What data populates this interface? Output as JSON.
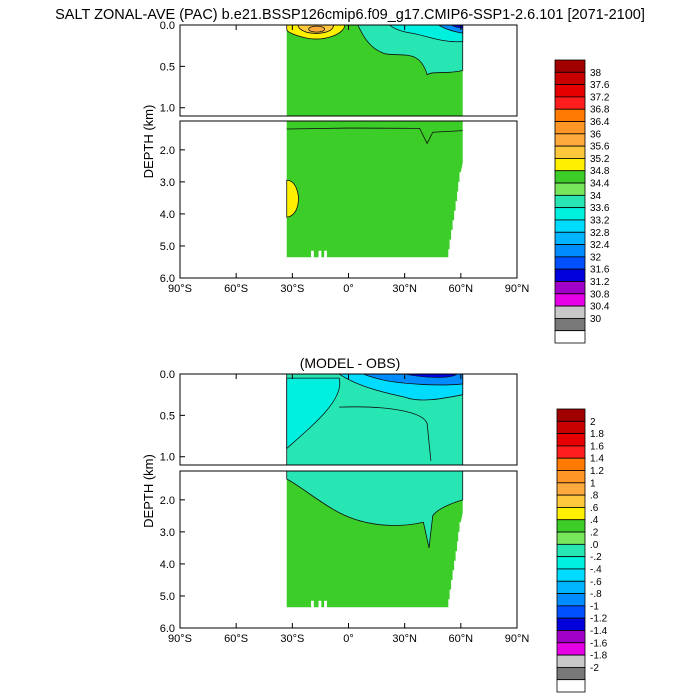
{
  "title": "SALT ZONAL-AVE (PAC) b.e21.BSSP126cmip6.f09_g17.CMIP6-SSP1-2.6.101 [2071-2100]",
  "bottom_title": "(MODEL - OBS)",
  "colors": {
    "frame": "#000000",
    "contour": "#111111"
  },
  "chart_data": [
    {
      "type": "heatmap",
      "name": "Salinity zonal average",
      "xlabel": "",
      "ylabel": "DEPTH (km)",
      "x_ticks": [
        "90°S",
        "60°S",
        "30°S",
        "0°",
        "30°N",
        "60°N",
        "90°N"
      ],
      "x_tick_values": [
        -90,
        -60,
        -30,
        0,
        30,
        60,
        90
      ],
      "y_ticks_upper": [
        "0.0",
        "0.5",
        "1.0"
      ],
      "y_ticks_upper_values": [
        0.0,
        0.5,
        1.0
      ],
      "y_ticks_lower": [
        "2.0",
        "3.0",
        "4.0",
        "5.0",
        "6.0"
      ],
      "y_ticks_lower_values": [
        2.0,
        3.0,
        4.0,
        5.0,
        6.0
      ],
      "xlim": [
        -90,
        90
      ],
      "ylim_upper": [
        0.0,
        1.1
      ],
      "ylim_lower": [
        1.1,
        6.0
      ],
      "colorbar_levels": [
        "38",
        "37.6",
        "37.2",
        "36.8",
        "36.4",
        "36",
        "35.6",
        "35.2",
        "34.8",
        "34.4",
        "34",
        "33.6",
        "33.2",
        "32.8",
        "32.4",
        "32",
        "31.6",
        "31.2",
        "30.8",
        "30.4",
        "30"
      ],
      "colorbar_colors": [
        "#a00000",
        "#c80000",
        "#e60000",
        "#ff1e1e",
        "#ff7a00",
        "#ff9626",
        "#ffaa3c",
        "#ffc83c",
        "#fff000",
        "#3ccd28",
        "#78e65a",
        "#28e6b4",
        "#00f0e0",
        "#00dcff",
        "#00b4ff",
        "#008cff",
        "#0050ff",
        "#0000dc",
        "#a000c8",
        "#e600e6",
        "#c8c8c8",
        "#787878",
        "#ffffff"
      ],
      "regions": [
        {
          "desc": "basin background",
          "x": [
            -33,
            61
          ],
          "depth": [
            0,
            5.35
          ],
          "value": 34.5
        },
        {
          "desc": "upper-ocean fresher water north of equator",
          "x": [
            0,
            61
          ],
          "depth": [
            0,
            0.45
          ],
          "value": 33.8
        },
        {
          "desc": "salty subtropical maximum",
          "x": [
            -33,
            -5
          ],
          "depth": [
            0,
            0.15
          ],
          "value": 35.6
        },
        {
          "desc": "deep salty bulge near south boundary",
          "x": [
            -33,
            -28
          ],
          "depth": [
            2.9,
            4.1
          ],
          "value": 34.8
        },
        {
          "desc": "fresh high-latitude surface",
          "x": [
            50,
            61
          ],
          "depth": [
            0,
            0.05
          ],
          "value": 31.8
        }
      ]
    },
    {
      "type": "heatmap",
      "name": "Model minus observations",
      "xlabel": "",
      "ylabel": "DEPTH (km)",
      "x_ticks": [
        "90°S",
        "60°S",
        "30°S",
        "0°",
        "30°N",
        "60°N",
        "90°N"
      ],
      "x_tick_values": [
        -90,
        -60,
        -30,
        0,
        30,
        60,
        90
      ],
      "y_ticks_upper": [
        "0.0",
        "0.5",
        "1.0"
      ],
      "y_ticks_upper_values": [
        0.0,
        0.5,
        1.0
      ],
      "y_ticks_lower": [
        "2.0",
        "3.0",
        "4.0",
        "5.0",
        "6.0"
      ],
      "y_ticks_lower_values": [
        2.0,
        3.0,
        4.0,
        5.0,
        6.0
      ],
      "xlim": [
        -90,
        90
      ],
      "ylim_upper": [
        0.0,
        1.1
      ],
      "ylim_lower": [
        1.1,
        6.0
      ],
      "colorbar_levels": [
        "2",
        "1.8",
        "1.6",
        "1.4",
        "1.2",
        "1",
        ".8",
        ".6",
        ".4",
        ".2",
        ".0",
        "-.2",
        "-.4",
        "-.6",
        "-.8",
        "-1",
        "-1.2",
        "-1.4",
        "-1.6",
        "-1.8",
        "-2"
      ],
      "colorbar_colors": [
        "#a00000",
        "#c80000",
        "#e60000",
        "#ff1e1e",
        "#ff7a00",
        "#ff9626",
        "#ffaa3c",
        "#ffc83c",
        "#fff000",
        "#3ccd28",
        "#78e65a",
        "#28e6b4",
        "#00f0e0",
        "#00dcff",
        "#00b4ff",
        "#008cff",
        "#0050ff",
        "#0000dc",
        "#a000c8",
        "#e600e6",
        "#c8c8c8",
        "#787878",
        "#ffffff"
      ],
      "regions": [
        {
          "desc": "upper ocean slightly fresh",
          "x": [
            -33,
            61
          ],
          "depth": [
            0,
            1.3
          ],
          "value": -0.1
        },
        {
          "desc": "deep ocean slightly salty",
          "x": [
            -33,
            53
          ],
          "depth": [
            2.5,
            5.35
          ],
          "value": 0.1
        },
        {
          "desc": "fresh surface anomaly",
          "x": [
            -5,
            58
          ],
          "depth": [
            0,
            0.1
          ],
          "value": -0.8
        }
      ]
    }
  ]
}
